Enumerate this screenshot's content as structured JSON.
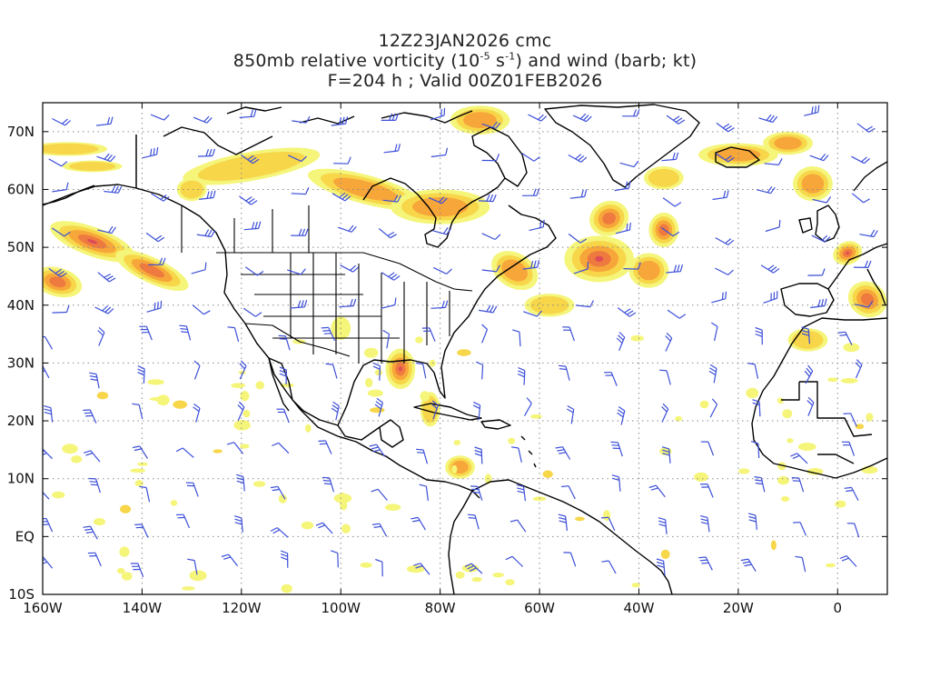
{
  "title": {
    "line1": "12Z23JAN2026 cmc",
    "line2_pre": "850mb relative vorticity (10",
    "line2_exp1": "-5",
    "line2_mid": " s",
    "line2_exp2": "-1",
    "line2_post": ") and wind (barb; kt)",
    "line3": "F=204 h ; Valid 00Z01FEB2026"
  },
  "map": {
    "lon_range": [
      -160,
      10
    ],
    "lat_range": [
      -10,
      75
    ],
    "lon_labels": [
      "160W",
      "140W",
      "120W",
      "100W",
      "80W",
      "60W",
      "40W",
      "20W",
      "0"
    ],
    "lat_labels": [
      "70N",
      "60N",
      "50N",
      "40N",
      "30N",
      "20N",
      "10N",
      "EQ",
      "10S"
    ],
    "shade_colors": [
      "#f5f57a",
      "#f7d64a",
      "#f7a63a",
      "#ee7a3f",
      "#dd4c58"
    ],
    "barb_color": "#3c4fd8",
    "coast_color": "#000000",
    "grid": "dotted"
  }
}
